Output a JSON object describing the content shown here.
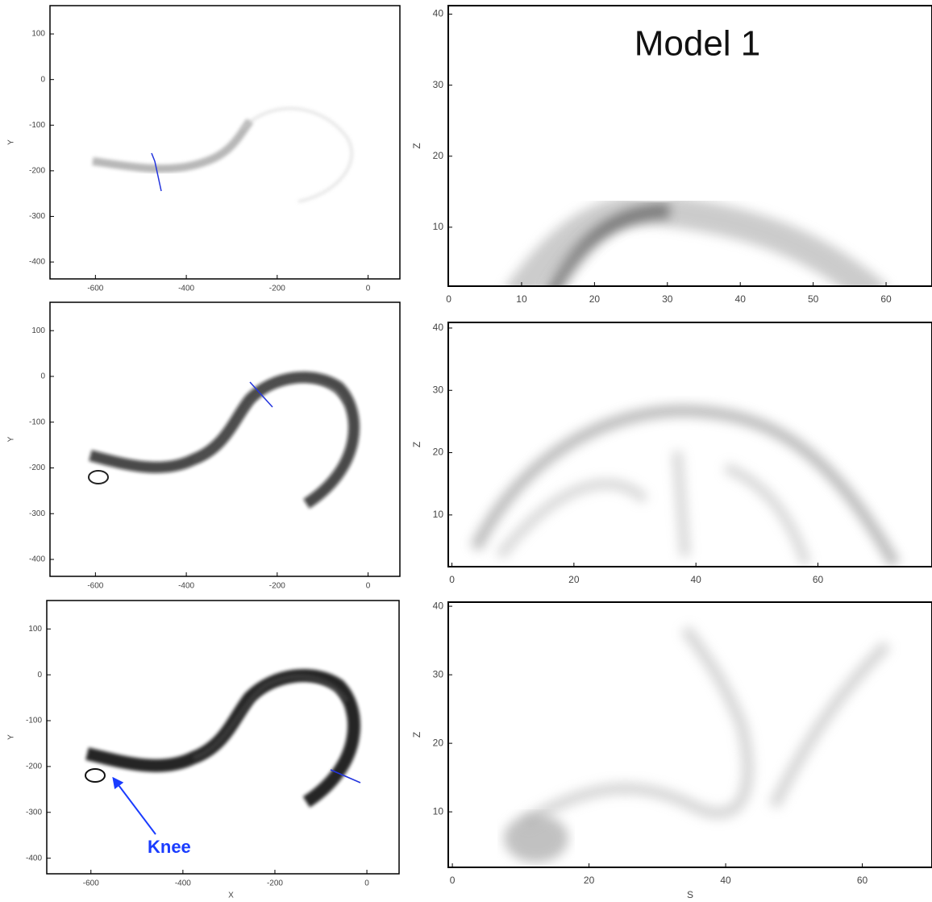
{
  "chart_data": [
    {
      "type": "image",
      "ylabel": "Y",
      "xlim": [
        -700,
        70
      ],
      "ylim": [
        -437,
        162
      ],
      "xticks": [
        -600,
        -400,
        -200,
        0
      ],
      "yticks": [
        100,
        0,
        -100,
        -200,
        -300,
        -400
      ]
    },
    {
      "type": "image",
      "ylabel": "Z",
      "annotation": "Model 1",
      "xlim": [
        -0.06,
        66.3
      ],
      "ylim": [
        1.7,
        41.2
      ],
      "xticks": [
        0,
        10,
        20,
        30,
        40,
        50,
        60
      ],
      "yticks": [
        10,
        20,
        30,
        40
      ]
    },
    {
      "type": "image",
      "ylabel": "Y",
      "xlim": [
        -700,
        70
      ],
      "ylim": [
        -437,
        162
      ],
      "xticks": [
        -600,
        -400,
        -200,
        0
      ],
      "yticks": [
        100,
        0,
        -100,
        -200,
        -300,
        -400
      ]
    },
    {
      "type": "image",
      "ylabel": "Z",
      "xlim": [
        -0.6,
        78.7
      ],
      "ylim": [
        1.7,
        40.9
      ],
      "xticks": [
        0,
        20,
        40,
        60
      ],
      "yticks": [
        10,
        20,
        30,
        40
      ]
    },
    {
      "type": "image",
      "xlabel": "X",
      "ylabel": "Y",
      "annotation": "Knee",
      "xlim": [
        -696,
        70
      ],
      "ylim": [
        -434,
        162
      ],
      "xticks": [
        -600,
        -400,
        -200,
        0
      ],
      "yticks": [
        100,
        0,
        -100,
        -200,
        -300,
        -400
      ]
    },
    {
      "type": "image",
      "xlabel": "S",
      "ylabel": "Z",
      "xlim": [
        -0.6,
        70.2
      ],
      "ylim": [
        1.9,
        40.6
      ],
      "xticks": [
        0,
        20,
        40,
        60
      ],
      "yticks": [
        10,
        20,
        30,
        40
      ]
    }
  ]
}
